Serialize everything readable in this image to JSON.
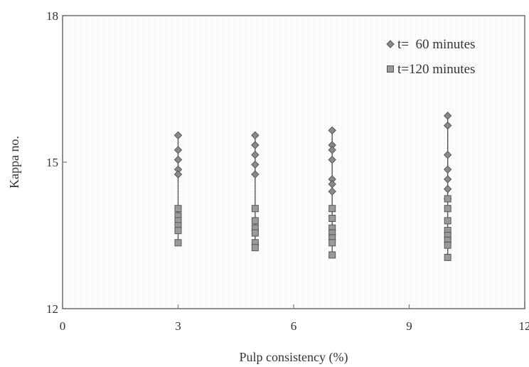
{
  "chart_data": {
    "type": "scatter",
    "xlabel": "Pulp consistency (%)",
    "ylabel": "Kappa no.",
    "xlim": [
      0,
      12
    ],
    "ylim": [
      12,
      18
    ],
    "x_ticks": [
      0,
      3,
      6,
      9,
      12
    ],
    "y_ticks": [
      12,
      15,
      18
    ],
    "x_tick_labels": [
      "0",
      "3",
      "6",
      "9",
      "12"
    ],
    "y_tick_labels": [
      "12",
      "15",
      "18"
    ],
    "grid": false,
    "legend_position": "top-right",
    "series": [
      {
        "name": "t=  60 minutes",
        "marker": "diamond",
        "x": [
          3,
          3,
          3,
          3,
          3,
          5,
          5,
          5,
          5,
          5,
          7,
          7,
          7,
          7,
          7,
          7,
          7,
          10,
          10,
          10,
          10,
          10,
          10,
          10
        ],
        "y": [
          15.55,
          15.25,
          15.05,
          14.85,
          14.75,
          15.55,
          15.35,
          15.15,
          14.95,
          14.75,
          15.65,
          15.35,
          15.25,
          15.05,
          14.65,
          14.55,
          14.4,
          15.95,
          15.75,
          15.15,
          14.85,
          14.65,
          14.45,
          14.25
        ]
      },
      {
        "name": "t=120 minutes",
        "marker": "square",
        "x": [
          3,
          3,
          3,
          3,
          3,
          3,
          5,
          5,
          5,
          5,
          5,
          5,
          7,
          7,
          7,
          7,
          7,
          7,
          7,
          10,
          10,
          10,
          10,
          10,
          10,
          10,
          10
        ],
        "y": [
          14.05,
          13.9,
          13.8,
          13.7,
          13.6,
          13.35,
          14.05,
          13.8,
          13.65,
          13.55,
          13.35,
          13.25,
          14.05,
          13.85,
          13.65,
          13.55,
          13.45,
          13.35,
          13.1,
          14.25,
          14.05,
          13.8,
          13.6,
          13.5,
          13.4,
          13.3,
          13.05
        ]
      }
    ],
    "error_bars": [
      {
        "x": 3,
        "y_low": 13.35,
        "y_high": 15.55
      },
      {
        "x": 5,
        "y_low": 13.25,
        "y_high": 15.55
      },
      {
        "x": 7,
        "y_low": 13.1,
        "y_high": 15.65
      },
      {
        "x": 10,
        "y_low": 13.05,
        "y_high": 15.95
      }
    ]
  }
}
